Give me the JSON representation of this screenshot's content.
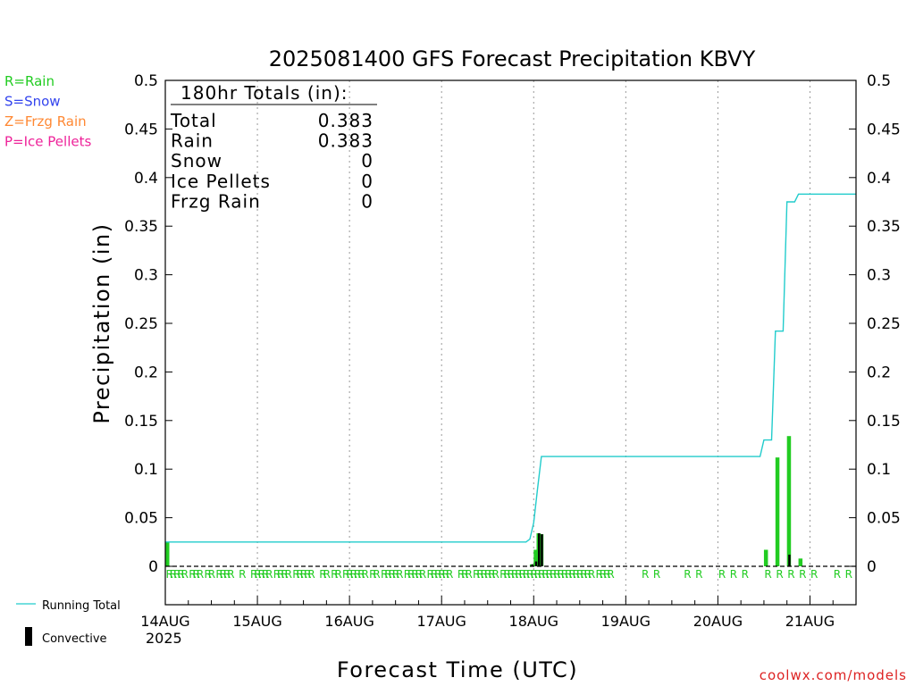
{
  "chart_data": {
    "type": "bar",
    "title": "2025081400 GFS Forecast Precipitation KBVY",
    "xlabel": "Forecast Time (UTC)",
    "ylabel": "Precipitation (in)",
    "ylim": [
      0,
      0.5
    ],
    "xlim_hours": [
      0,
      180
    ],
    "y_ticks": [
      "0",
      "0.05",
      "0.1",
      "0.15",
      "0.2",
      "0.25",
      "0.3",
      "0.35",
      "0.4",
      "0.45",
      "0.5"
    ],
    "x_ticks": [
      {
        "label": "14AUG",
        "hour": 0
      },
      {
        "label": "15AUG",
        "hour": 24
      },
      {
        "label": "16AUG",
        "hour": 48
      },
      {
        "label": "17AUG",
        "hour": 72
      },
      {
        "label": "18AUG",
        "hour": 96
      },
      {
        "label": "19AUG",
        "hour": 120
      },
      {
        "label": "20AUG",
        "hour": 144
      },
      {
        "label": "21AUG",
        "hour": 168
      }
    ],
    "year_label": "2025",
    "grid": "vertical-dotted",
    "legend": {
      "precip_types": [
        {
          "label": "R=Rain",
          "color": "#22cc22"
        },
        {
          "label": "S=Snow",
          "color": "#3344ee"
        },
        {
          "label": "Z=Frzg Rain",
          "color": "#ff8833"
        },
        {
          "label": "P=Ice Pellets",
          "color": "#ee2299"
        }
      ],
      "lines": [
        {
          "label": "Running Total",
          "color": "#22cccc"
        },
        {
          "label": "Convective",
          "color": "#000000"
        }
      ]
    },
    "totals_box": {
      "header": "180hr Totals (in):",
      "rows": [
        {
          "label": "Total",
          "value": "0.383"
        },
        {
          "label": "Rain",
          "value": "0.383"
        },
        {
          "label": "Snow",
          "value": "0"
        },
        {
          "label": "Ice Pellets",
          "value": "0"
        },
        {
          "label": "Frzg Rain",
          "value": "0"
        }
      ]
    },
    "series": [
      {
        "name": "Running Total",
        "kind": "line",
        "points": [
          [
            0,
            0.025
          ],
          [
            1,
            0.025
          ],
          [
            94,
            0.025
          ],
          [
            95,
            0.028
          ],
          [
            96,
            0.045
          ],
          [
            97,
            0.08
          ],
          [
            98,
            0.113
          ],
          [
            155,
            0.113
          ],
          [
            156,
            0.13
          ],
          [
            158,
            0.13
          ],
          [
            159,
            0.242
          ],
          [
            161,
            0.242
          ],
          [
            162,
            0.375
          ],
          [
            164,
            0.375
          ],
          [
            165,
            0.383
          ],
          [
            180,
            0.383
          ]
        ]
      },
      {
        "name": "Rain",
        "kind": "bar",
        "bars": [
          [
            0,
            0.025
          ],
          [
            95,
            0.002
          ],
          [
            96,
            0.017
          ],
          [
            96.75,
            0.034
          ],
          [
            97.5,
            0.033
          ],
          [
            156,
            0.017
          ],
          [
            159,
            0.112
          ],
          [
            162,
            0.134
          ],
          [
            165,
            0.008
          ]
        ]
      },
      {
        "name": "Convective",
        "kind": "bar",
        "bars": [
          [
            95,
            0.002
          ],
          [
            96,
            0.005
          ],
          [
            96.75,
            0.034
          ],
          [
            97.5,
            0.033
          ],
          [
            162,
            0.012
          ]
        ]
      }
    ],
    "precip_type_hours": [
      0,
      1,
      2,
      3,
      4,
      6,
      7,
      8,
      10,
      11,
      13,
      14,
      15,
      16,
      19,
      22,
      23,
      24,
      25,
      26,
      28,
      29,
      30,
      31,
      33,
      34,
      35,
      36,
      37,
      40,
      41,
      43,
      44,
      46,
      47,
      48,
      49,
      50,
      51,
      53,
      54,
      56,
      57,
      58,
      59,
      60,
      62,
      63,
      64,
      65,
      66,
      68,
      69,
      70,
      71,
      72,
      73,
      76,
      77,
      78,
      80,
      81,
      82,
      83,
      84,
      85,
      87,
      88,
      89,
      90,
      91,
      92,
      93,
      94,
      95,
      96,
      97,
      98,
      99,
      100,
      101,
      102,
      103,
      104,
      105,
      106,
      107,
      108,
      109,
      110,
      112,
      113,
      114,
      115,
      124,
      127,
      135,
      138,
      144,
      147,
      150,
      156,
      159,
      162,
      165,
      168,
      174,
      177
    ],
    "precip_type_label": "R",
    "footer": "coolwx.com/models"
  }
}
